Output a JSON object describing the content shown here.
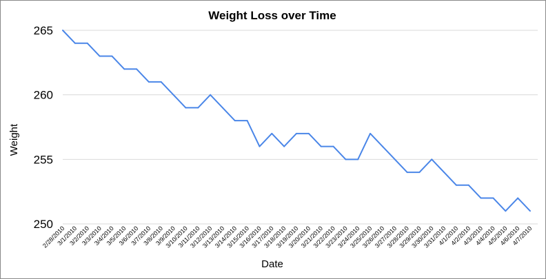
{
  "chart_data": {
    "type": "line",
    "title": "Weight Loss over Time",
    "xlabel": "Date",
    "ylabel": "Weight",
    "ylim": [
      250,
      265
    ],
    "yticks": [
      "250",
      "255",
      "260",
      "265"
    ],
    "grid": true,
    "legend": "none",
    "line_color": "#4a86e8",
    "categories": [
      "2/28/2010",
      "3/1/2010",
      "3/2/2010",
      "3/3/2010",
      "3/4/2010",
      "3/5/2010",
      "3/6/2010",
      "3/7/2010",
      "3/8/2010",
      "3/9/2010",
      "3/10/2010",
      "3/11/2010",
      "3/12/2010",
      "3/13/2010",
      "3/14/2010",
      "3/15/2010",
      "3/16/2010",
      "3/17/2010",
      "3/18/2010",
      "3/19/2010",
      "3/20/2010",
      "3/21/2010",
      "3/22/2010",
      "3/23/2010",
      "3/24/2010",
      "3/25/2010",
      "3/26/2010",
      "3/27/2010",
      "3/28/2010",
      "3/29/2010",
      "3/30/2010",
      "3/31/2010",
      "4/1/2010",
      "4/2/2010",
      "4/3/2010",
      "4/4/2010",
      "4/5/2010",
      "4/6/2010",
      "4/7/2010"
    ],
    "values": [
      265,
      264,
      264,
      263,
      263,
      262,
      262,
      261,
      261,
      260,
      259,
      259,
      260,
      259,
      258,
      258,
      256,
      257,
      256,
      257,
      257,
      256,
      256,
      255,
      255,
      257,
      256,
      255,
      254,
      254,
      255,
      254,
      253,
      253,
      252,
      252,
      251,
      252,
      251
    ]
  }
}
